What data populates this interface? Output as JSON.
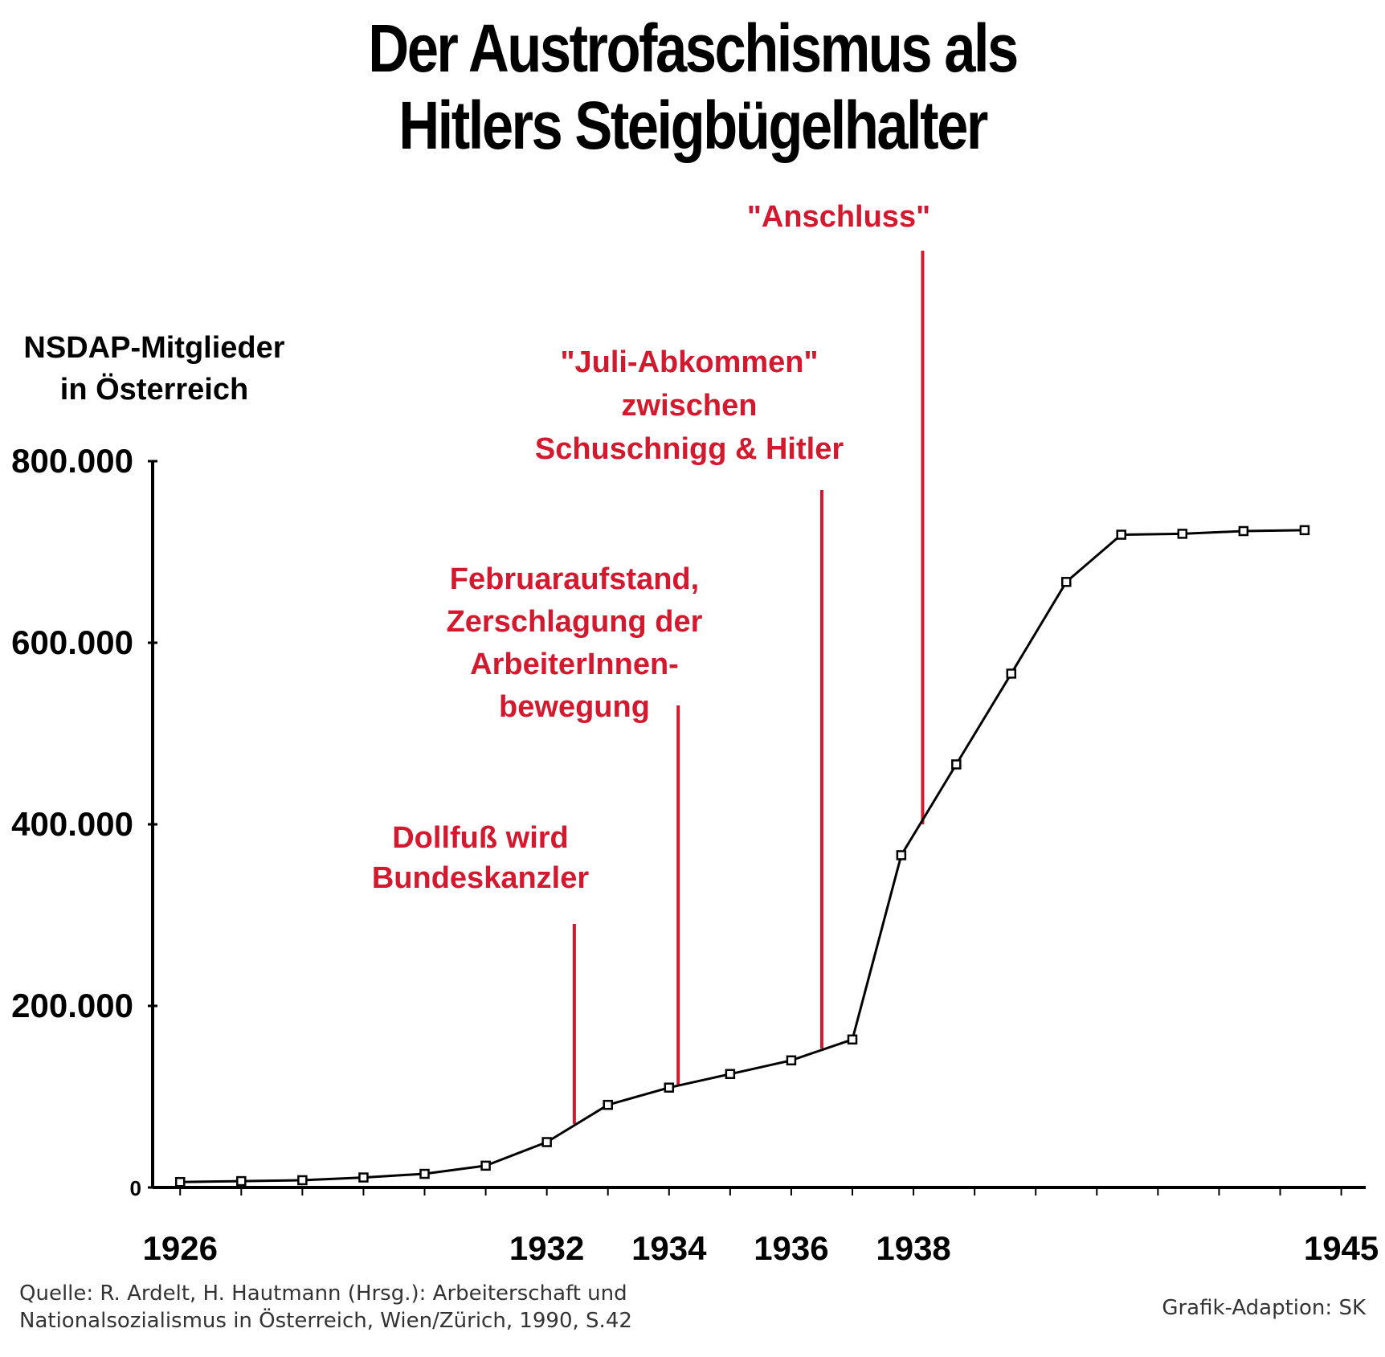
{
  "title_lines": [
    "Der Austrofaschismus als",
    "Hitlers Steigbügelhalter"
  ],
  "colors": {
    "annotation": "#d4182e",
    "line": "#000000",
    "background": "#ffffff"
  },
  "chart_data": {
    "type": "line",
    "ylabel_lines": [
      "NSDAP-Mitglieder",
      "in Österreich"
    ],
    "xlabel": "",
    "ylim": [
      0,
      800000
    ],
    "xlim": [
      1925.55,
      1945.4
    ],
    "y_ticks": [
      {
        "value": 0,
        "label": "0"
      },
      {
        "value": 200000,
        "label": "200.000"
      },
      {
        "value": 400000,
        "label": "400.000"
      },
      {
        "value": 600000,
        "label": "600.000"
      },
      {
        "value": 800000,
        "label": "800.000"
      }
    ],
    "x_tick_marks": [
      1926,
      1927,
      1928,
      1929,
      1930,
      1931,
      1932,
      1933,
      1934,
      1935,
      1936,
      1937,
      1938,
      1939,
      1940,
      1941,
      1942,
      1943,
      1944,
      1945
    ],
    "x_labels": [
      {
        "value": 1926,
        "label": "1926"
      },
      {
        "value": 1932,
        "label": "1932"
      },
      {
        "value": 1934,
        "label": "1934"
      },
      {
        "value": 1936,
        "label": "1936"
      },
      {
        "value": 1938,
        "label": "1938"
      },
      {
        "value": 1945,
        "label": "1945"
      }
    ],
    "grid": false,
    "series": [
      {
        "x": [
          1926,
          1927,
          1928,
          1929,
          1930,
          1931,
          1932,
          1933,
          1934,
          1935,
          1936,
          1937,
          1937.8,
          1938.7,
          1939.6,
          1940.5,
          1941.4,
          1942.4,
          1943.4,
          1944.4
        ],
        "values": [
          6000,
          7000,
          8000,
          11000,
          15000,
          24000,
          50000,
          91000,
          110000,
          125000,
          140000,
          163000,
          366000,
          466000,
          566000,
          667000,
          719000,
          720000,
          723000,
          724000
        ]
      }
    ],
    "annotations": [
      {
        "text_lines": [
          "Dollfuß wird",
          "Bundeskanzler"
        ],
        "x": 1932.45,
        "y": 70000
      },
      {
        "text_lines": [
          "Februaraufstand,",
          "Zerschlagung der",
          "ArbeiterInnen-",
          "bewegung"
        ],
        "x": 1934.15,
        "y": 113000
      },
      {
        "text_lines": [
          "\"Juli-Abkommen\"",
          "zwischen",
          "Schuschnigg & Hitler"
        ],
        "x": 1936.5,
        "y": 153000
      },
      {
        "text_lines": [
          "\"Anschluss\""
        ],
        "x": 1938.15,
        "y": 400000
      }
    ]
  },
  "source_lines": [
    "Quelle: R. Ardelt, H. Hautmann (Hrsg.): Arbeiterschaft und",
    "Nationalsozialismus in Österreich, Wien/Zürich, 1990, S.42"
  ],
  "credit": "Grafik-Adaption: SK"
}
